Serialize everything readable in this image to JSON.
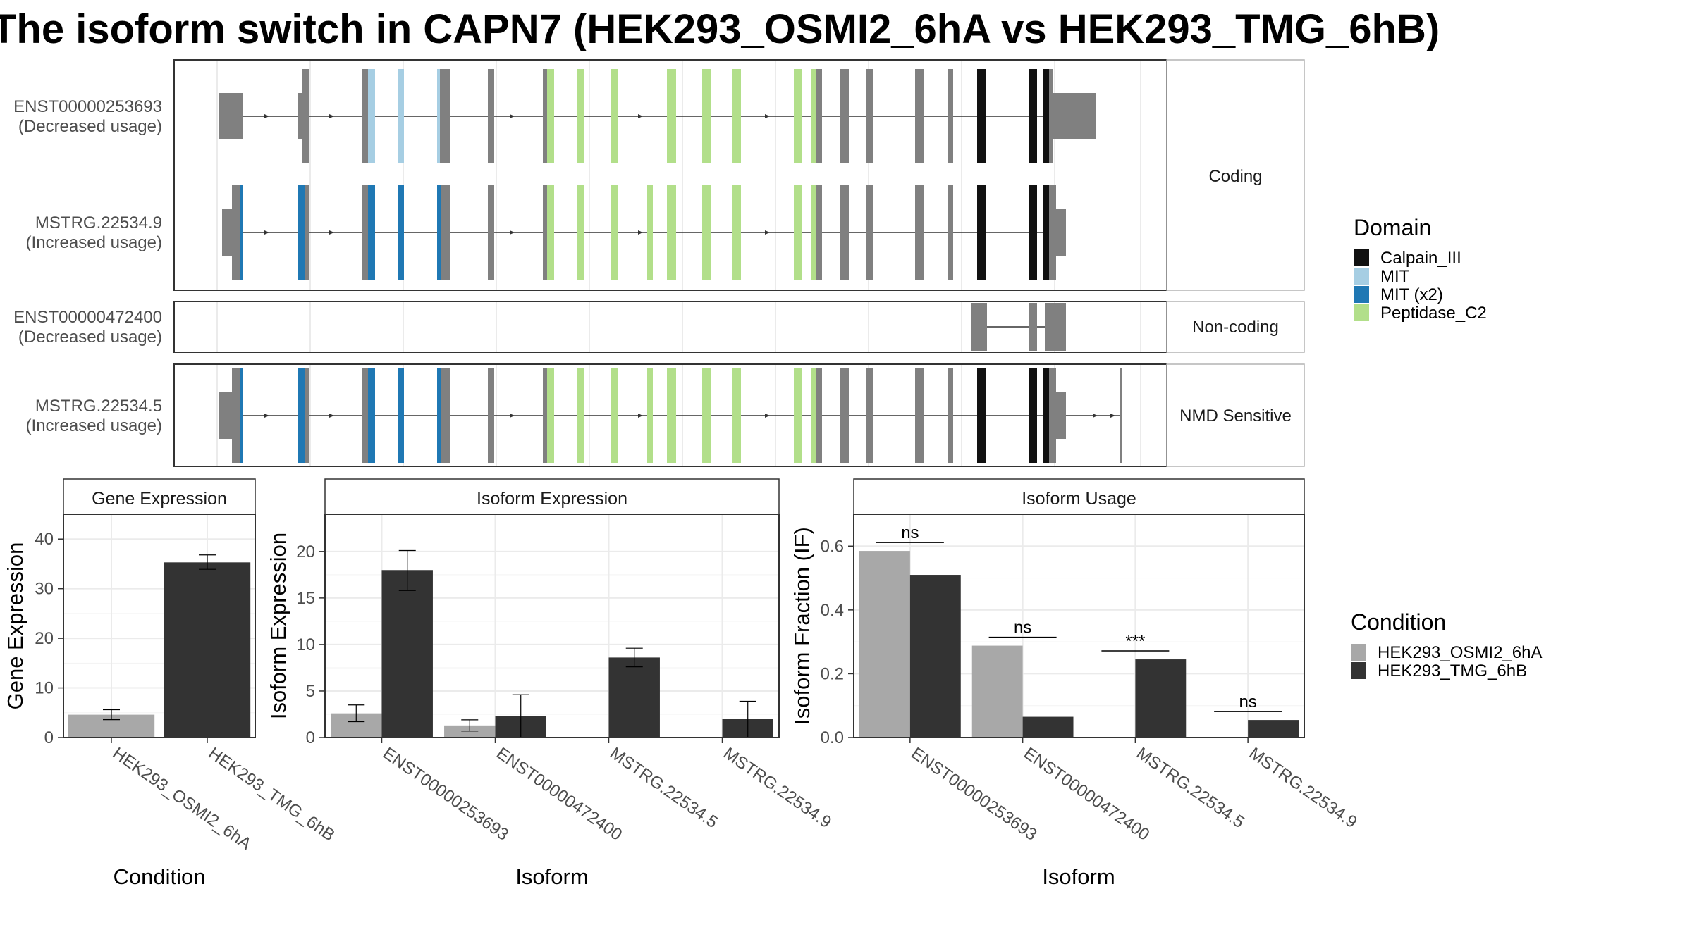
{
  "title": "The isoform switch in CAPN7 (HEK293_OSMI2_6hA vs HEK293_TMG_6hB)",
  "colors": {
    "Calpain_III": "#111111",
    "MIT": "#a6cee3",
    "MIT (x2)": "#1f78b4",
    "Peptidase_C2": "#b2df8a",
    "noncoding_exon": "#808080",
    "HEK293_OSMI2_6hA": "#a8a8a8",
    "HEK293_TMG_6hB": "#333333"
  },
  "domain_legend": {
    "title": "Domain",
    "entries": [
      "Calpain_III",
      "MIT",
      "MIT (x2)",
      "Peptidase_C2"
    ]
  },
  "condition_legend": {
    "title": "Condition",
    "entries": [
      "HEK293_OSMI2_6hA",
      "HEK293_TMG_6hB"
    ]
  },
  "transcripts": {
    "facets": [
      {
        "label": "Coding",
        "isoforms": [
          {
            "name": "ENST00000253693",
            "usage": "(Decreased usage)"
          },
          {
            "name": "MSTRG.22534.9",
            "usage": "(Increased usage)"
          }
        ]
      },
      {
        "label": "Non-coding",
        "isoforms": [
          {
            "name": "ENST00000472400",
            "usage": "(Decreased usage)"
          }
        ]
      },
      {
        "label": "NMD Sensitive",
        "isoforms": [
          {
            "name": "MSTRG.22534.5",
            "usage": "(Increased usage)"
          }
        ]
      }
    ]
  },
  "chart_data": [
    {
      "type": "bar",
      "title": "Gene Expression",
      "xlabel": "Condition",
      "ylabel": "Gene Expression",
      "categories": [
        "HEK293_OSMI2_6hA",
        "HEK293_TMG_6hB"
      ],
      "values": [
        4.6,
        35.3
      ],
      "error": [
        [
          3.6,
          5.6
        ],
        [
          33.9,
          36.8
        ]
      ],
      "ylim": [
        0,
        45
      ],
      "yticks": [
        0,
        10,
        20,
        30,
        40
      ],
      "grid": true
    },
    {
      "type": "bar",
      "title": "Isoform Expression",
      "xlabel": "Isoform",
      "ylabel": "Isoform Expression",
      "categories": [
        "ENST00000253693",
        "ENST00000472400",
        "MSTRG.22534.5",
        "MSTRG.22534.9"
      ],
      "series": [
        {
          "name": "HEK293_OSMI2_6hA",
          "values": [
            2.6,
            1.3,
            0.0,
            0.0
          ],
          "error": [
            [
              1.7,
              3.5
            ],
            [
              0.7,
              1.9
            ],
            [
              0,
              0
            ],
            [
              0,
              0
            ]
          ]
        },
        {
          "name": "HEK293_TMG_6hB",
          "values": [
            18.0,
            2.3,
            8.6,
            2.0
          ],
          "error": [
            [
              15.8,
              20.1
            ],
            [
              0.0,
              4.6
            ],
            [
              7.6,
              9.6
            ],
            [
              0.0,
              3.9
            ]
          ]
        }
      ],
      "ylim": [
        0,
        24
      ],
      "yticks": [
        0,
        5,
        10,
        15,
        20
      ],
      "grid": true
    },
    {
      "type": "bar",
      "title": "Isoform Usage",
      "xlabel": "Isoform",
      "ylabel": "Isoform Fraction (IF)",
      "categories": [
        "ENST00000253693",
        "ENST00000472400",
        "MSTRG.22534.5",
        "MSTRG.22534.9"
      ],
      "series": [
        {
          "name": "HEK293_OSMI2_6hA",
          "values": [
            0.585,
            0.288,
            0.0,
            0.0
          ]
        },
        {
          "name": "HEK293_TMG_6hB",
          "values": [
            0.51,
            0.065,
            0.245,
            0.055
          ]
        }
      ],
      "significance": [
        "ns",
        "ns",
        "***",
        "ns"
      ],
      "ylim": [
        0,
        0.7
      ],
      "yticks": [
        0.0,
        0.2,
        0.4,
        0.6
      ],
      "grid": true
    }
  ]
}
